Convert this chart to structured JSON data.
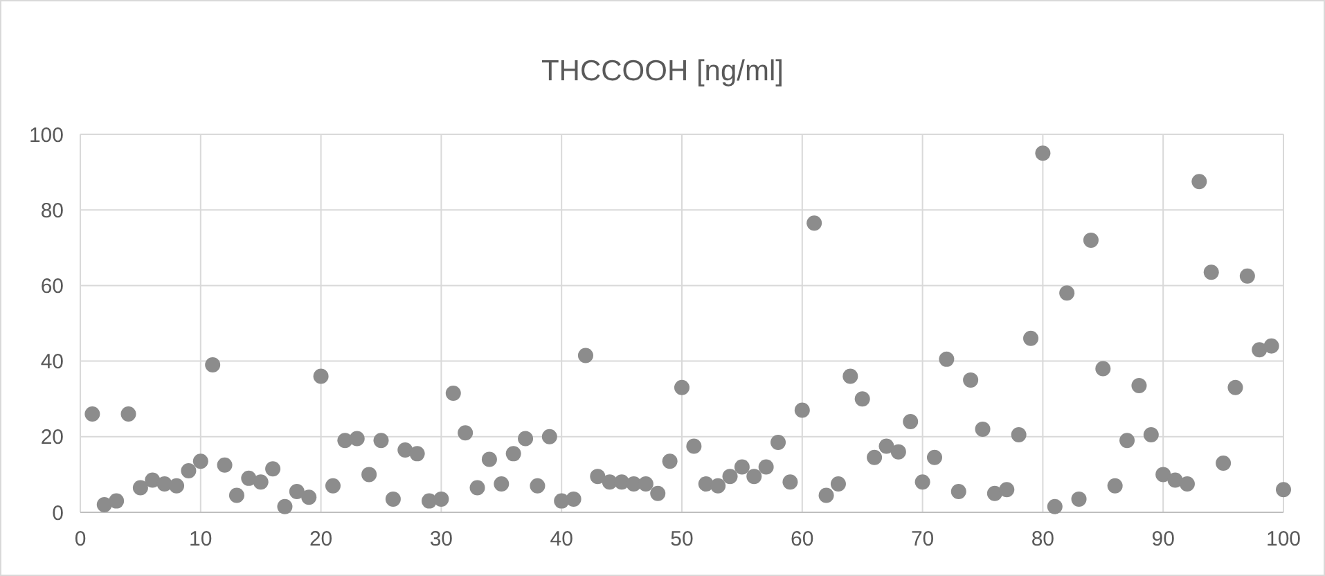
{
  "chart_data": {
    "type": "scatter",
    "title": "THCCOOH [ng/ml]",
    "x": [
      1,
      2,
      3,
      4,
      5,
      6,
      7,
      8,
      9,
      10,
      11,
      12,
      13,
      14,
      15,
      16,
      17,
      18,
      19,
      20,
      21,
      22,
      23,
      24,
      25,
      26,
      27,
      28,
      29,
      30,
      31,
      32,
      33,
      34,
      35,
      36,
      37,
      38,
      39,
      40,
      41,
      42,
      43,
      44,
      45,
      46,
      47,
      48,
      49,
      50,
      51,
      52,
      53,
      54,
      55,
      56,
      57,
      58,
      59,
      60,
      61,
      62,
      63,
      64,
      65,
      66,
      67,
      68,
      69,
      70,
      71,
      72,
      73,
      74,
      75,
      76,
      77,
      78,
      79,
      80,
      81,
      82,
      83,
      84,
      85,
      86,
      87,
      88,
      89,
      90,
      91,
      92,
      93,
      94,
      95,
      96,
      97,
      98,
      99,
      100
    ],
    "series": [
      {
        "color": "#8c8c8c",
        "values": [
          26,
          2,
          3,
          26,
          6.5,
          8.5,
          7.5,
          7,
          11,
          13.5,
          39,
          12.5,
          4.5,
          9,
          8,
          11.5,
          1.5,
          5.5,
          4,
          36,
          7,
          19,
          19.5,
          10,
          19,
          3.5,
          16.5,
          15.5,
          3,
          3.5,
          31.5,
          21,
          6.5,
          14,
          7.5,
          15.5,
          19.5,
          7,
          20,
          3,
          3.5,
          41.5,
          9.5,
          8,
          8,
          7.5,
          7.5,
          5,
          13.5,
          33,
          17.5,
          7.5,
          7,
          9.5,
          12,
          9.5,
          12,
          18.5,
          8,
          27,
          76.5,
          4.5,
          7.5,
          36,
          30,
          14.5,
          17.5,
          16,
          24,
          8,
          14.5,
          40.5,
          5.5,
          35,
          22,
          5,
          6,
          20.5,
          46,
          95,
          1.5,
          58,
          3.5,
          72,
          38,
          7,
          19,
          33.5,
          20.5,
          10,
          8.5,
          7.5,
          87.5,
          63.5,
          13,
          33,
          62.5,
          43,
          44,
          6
        ]
      }
    ],
    "xlim": [
      0,
      100
    ],
    "xticks": [
      0,
      10,
      20,
      30,
      40,
      50,
      60,
      70,
      80,
      90,
      100
    ],
    "ylim": [
      0,
      100
    ],
    "yticks": [
      0,
      20,
      40,
      60,
      80,
      100
    ],
    "grid": true,
    "marker": "circle"
  }
}
